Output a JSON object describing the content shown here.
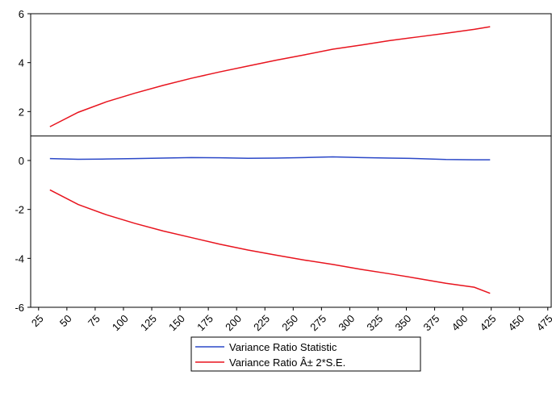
{
  "chart_data": {
    "type": "line",
    "x": [
      35,
      60,
      85,
      110,
      135,
      160,
      185,
      210,
      235,
      260,
      285,
      310,
      335,
      360,
      385,
      410,
      424
    ],
    "series": [
      {
        "name": "Variance Ratio Statistic",
        "color": "#2b48c8",
        "values": [
          0.08,
          0.05,
          0.06,
          0.08,
          0.1,
          0.12,
          0.11,
          0.09,
          0.1,
          0.12,
          0.15,
          0.12,
          0.1,
          0.08,
          0.04,
          0.03,
          0.03
        ]
      },
      {
        "name": "Variance Ratio Â± 2*S.E.",
        "color": "#e8141e",
        "values": [
          1.38,
          1.97,
          2.4,
          2.75,
          3.07,
          3.36,
          3.62,
          3.86,
          4.1,
          4.32,
          4.55,
          4.72,
          4.9,
          5.05,
          5.2,
          5.36,
          5.47
        ]
      },
      {
        "color": "#e8141e",
        "values": [
          -1.2,
          -1.8,
          -2.22,
          -2.57,
          -2.88,
          -3.15,
          -3.42,
          -3.66,
          -3.87,
          -4.07,
          -4.25,
          -4.45,
          -4.63,
          -4.82,
          -5.02,
          -5.18,
          -5.43
        ]
      }
    ],
    "xlim": [
      18,
      478
    ],
    "xticks": [
      25,
      50,
      75,
      100,
      125,
      150,
      175,
      200,
      225,
      250,
      275,
      300,
      325,
      350,
      375,
      400,
      425,
      450,
      475
    ],
    "ylim": [
      -6,
      6
    ],
    "yticks": [
      -6,
      -4,
      -2,
      0,
      2,
      4,
      6
    ],
    "reference_line": 1
  }
}
